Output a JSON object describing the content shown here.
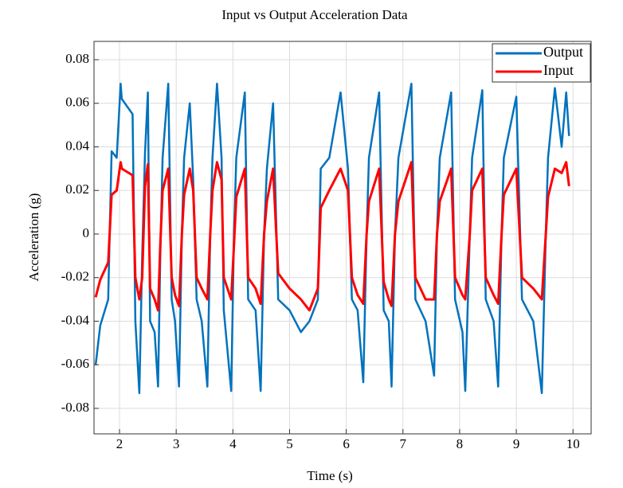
{
  "chart_data": {
    "type": "line",
    "title": "Input vs Output Acceleration Data",
    "x_label": "Time (s)",
    "y_label": "Acceleration (g)",
    "xlim": [
      1.55,
      10.32
    ],
    "ylim": [
      -0.0917,
      0.0884
    ],
    "xticks": [
      2,
      3,
      4,
      5,
      6,
      7,
      8,
      9,
      10
    ],
    "yticks": [
      -0.08,
      -0.06,
      -0.04,
      -0.02,
      0,
      0.02,
      0.04,
      0.06,
      0.08
    ],
    "grid": true,
    "legend": "upper right",
    "x": [
      1.58,
      1.66,
      1.8,
      1.86,
      1.95,
      2.02,
      2.04,
      2.23,
      2.28,
      2.35,
      2.4,
      2.45,
      2.5,
      2.54,
      2.62,
      2.68,
      2.72,
      2.76,
      2.86,
      2.92,
      2.98,
      3.05,
      3.1,
      3.14,
      3.24,
      3.3,
      3.36,
      3.45,
      3.55,
      3.6,
      3.64,
      3.72,
      3.8,
      3.84,
      3.97,
      4.02,
      4.06,
      4.21,
      4.27,
      4.4,
      4.49,
      4.55,
      4.6,
      4.71,
      4.8,
      5.0,
      5.2,
      5.35,
      5.5,
      5.55,
      5.7,
      5.9,
      6.03,
      6.1,
      6.2,
      6.3,
      6.36,
      6.4,
      6.58,
      6.66,
      6.75,
      6.8,
      6.86,
      6.92,
      7.15,
      7.22,
      7.4,
      7.55,
      7.6,
      7.65,
      7.85,
      7.92,
      8.05,
      8.1,
      8.18,
      8.22,
      8.4,
      8.46,
      8.6,
      8.68,
      8.74,
      8.78,
      9.0,
      9.1,
      9.3,
      9.45,
      9.52,
      9.56,
      9.68,
      9.8,
      9.88,
      9.93
    ],
    "series": [
      {
        "name": "Output",
        "color": "#0072bd",
        "values": [
          -0.06,
          -0.042,
          -0.03,
          0.038,
          0.035,
          0.069,
          0.062,
          0.055,
          -0.04,
          -0.073,
          -0.01,
          0.037,
          0.065,
          -0.04,
          -0.045,
          -0.07,
          -0.01,
          0.035,
          0.069,
          -0.03,
          -0.04,
          -0.07,
          0,
          0.035,
          0.06,
          0.025,
          -0.03,
          -0.04,
          -0.07,
          0,
          0.035,
          0.069,
          0.035,
          -0.035,
          -0.072,
          0,
          0.035,
          0.065,
          -0.03,
          -0.035,
          -0.072,
          0,
          0.03,
          0.06,
          -0.03,
          -0.035,
          -0.045,
          -0.04,
          -0.03,
          0.03,
          0.035,
          0.065,
          0.03,
          -0.03,
          -0.035,
          -0.068,
          0,
          0.035,
          0.065,
          -0.035,
          -0.04,
          -0.07,
          0,
          0.035,
          0.069,
          -0.03,
          -0.04,
          -0.065,
          0,
          0.035,
          0.065,
          -0.03,
          -0.045,
          -0.072,
          0,
          0.035,
          0.066,
          -0.03,
          -0.04,
          -0.07,
          0,
          0.035,
          0.063,
          -0.03,
          -0.04,
          -0.073,
          0,
          0.035,
          0.067,
          0.04,
          0.065,
          0.045
        ]
      },
      {
        "name": "Input",
        "color": "#ff0000",
        "values": [
          -0.029,
          -0.021,
          -0.013,
          0.018,
          0.02,
          0.033,
          0.03,
          0.027,
          -0.02,
          -0.03,
          -0.02,
          0.022,
          0.032,
          -0.025,
          -0.03,
          -0.035,
          -0.005,
          0.02,
          0.03,
          -0.02,
          -0.028,
          -0.033,
          0,
          0.018,
          0.03,
          0.02,
          -0.02,
          -0.025,
          -0.03,
          0,
          0.02,
          0.033,
          0.025,
          -0.02,
          -0.03,
          -0.005,
          0.017,
          0.03,
          -0.02,
          -0.025,
          -0.032,
          0,
          0.015,
          0.03,
          -0.018,
          -0.025,
          -0.03,
          -0.035,
          -0.025,
          0.012,
          0.02,
          0.03,
          0.02,
          -0.02,
          -0.028,
          -0.032,
          0,
          0.015,
          0.03,
          -0.022,
          -0.03,
          -0.033,
          0,
          0.015,
          0.033,
          -0.02,
          -0.03,
          -0.03,
          0,
          0.015,
          0.03,
          -0.02,
          -0.028,
          -0.03,
          0,
          0.02,
          0.03,
          -0.02,
          -0.028,
          -0.032,
          0,
          0.018,
          0.03,
          -0.02,
          -0.025,
          -0.03,
          0,
          0.017,
          0.03,
          0.028,
          0.033,
          0.022
        ]
      }
    ]
  }
}
